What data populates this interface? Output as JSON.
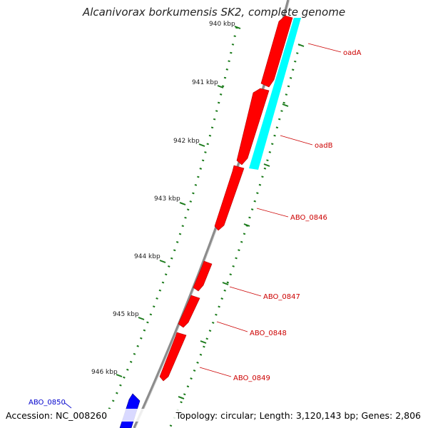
{
  "title": "Alcanivorax borkumensis SK2, complete genome",
  "footer": {
    "accession": "Accession: NC_008260",
    "topology": "Topology: circular; Length: 3,120,143 bp; Genes: 2,806"
  },
  "colors": {
    "backbone": "#8c8c8c",
    "forward_gene": "#ff0000",
    "reverse_gene": "#0000ff",
    "feature": "#00ffff",
    "tick": "#1a7a1a",
    "label_forward": "#cc0000",
    "label_reverse": "#0000cc"
  },
  "ticks": [
    {
      "label": "940 kbp"
    },
    {
      "label": "941 kbp"
    },
    {
      "label": "942 kbp"
    },
    {
      "label": "943 kbp"
    },
    {
      "label": "944 kbp"
    },
    {
      "label": "945 kbp"
    },
    {
      "label": "946 kbp"
    }
  ],
  "genes": [
    {
      "name": "oadA",
      "strand": "forward"
    },
    {
      "name": "oadB",
      "strand": "forward"
    },
    {
      "name": "ABO_0846",
      "strand": "forward"
    },
    {
      "name": "ABO_0847",
      "strand": "forward"
    },
    {
      "name": "ABO_0848",
      "strand": "forward"
    },
    {
      "name": "ABO_0849",
      "strand": "forward"
    },
    {
      "name": "ABO_0850",
      "strand": "reverse"
    }
  ]
}
